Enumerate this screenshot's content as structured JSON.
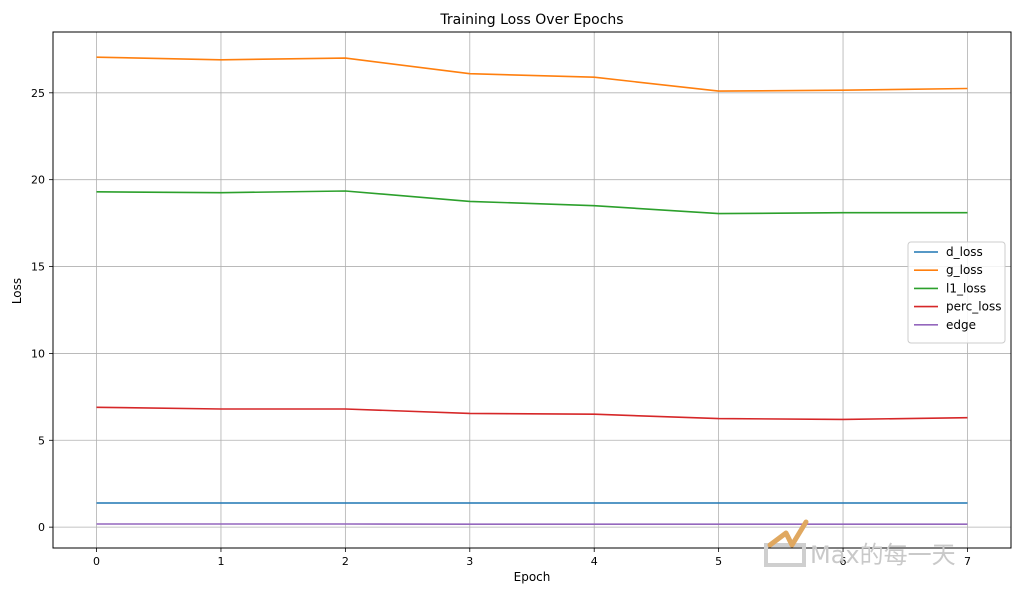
{
  "chart_data": {
    "type": "line",
    "title": "Training Loss Over Epochs",
    "xlabel": "Epoch",
    "ylabel": "Loss",
    "x": [
      0,
      1,
      2,
      3,
      4,
      5,
      6,
      7
    ],
    "xlim": [
      -0.35,
      7.35
    ],
    "ylim": [
      -1.2,
      28.5
    ],
    "xticks": [
      0,
      1,
      2,
      3,
      4,
      5,
      6,
      7
    ],
    "yticks": [
      0,
      5,
      10,
      15,
      20,
      25
    ],
    "grid": true,
    "legend_position": "center-right",
    "series": [
      {
        "name": "d_loss",
        "color": "#1f77b4",
        "values": [
          1.39,
          1.39,
          1.39,
          1.39,
          1.39,
          1.39,
          1.39,
          1.39
        ]
      },
      {
        "name": "g_loss",
        "color": "#ff7f0e",
        "values": [
          27.05,
          26.9,
          27.0,
          26.1,
          25.9,
          25.1,
          25.15,
          25.25
        ]
      },
      {
        "name": "l1_loss",
        "color": "#2ca02c",
        "values": [
          19.3,
          19.25,
          19.35,
          18.75,
          18.5,
          18.05,
          18.1,
          18.1
        ]
      },
      {
        "name": "perc_loss",
        "color": "#d62728",
        "values": [
          6.9,
          6.8,
          6.8,
          6.55,
          6.5,
          6.25,
          6.2,
          6.3
        ]
      },
      {
        "name": "edge",
        "color": "#9467bd",
        "values": [
          0.18,
          0.18,
          0.18,
          0.17,
          0.17,
          0.17,
          0.17,
          0.17
        ]
      }
    ]
  },
  "watermark": {
    "text": "Max的每一天",
    "color": "#c9c9c9",
    "accent": "#e0a860"
  }
}
